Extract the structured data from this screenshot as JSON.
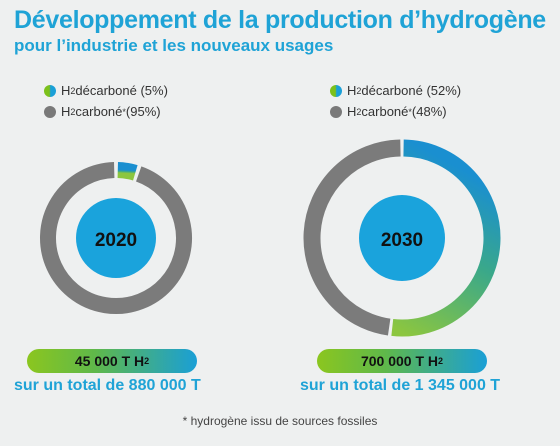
{
  "title": "Développement de la production d’hydrogène",
  "subtitle": "pour l’industrie et les nouveaux usages",
  "h2_prefix": "H",
  "h2_sub": "2",
  "colors": {
    "decarbone_start": "#8cc63f",
    "decarbone_end": "#1a8fd0",
    "carbone": "#7b7b7b",
    "center": "#1aa3dc",
    "title": "#1fa3d6"
  },
  "chart_data": [
    {
      "type": "pie",
      "center_label": "2020",
      "legend": [
        {
          "label": " décarboné (5%)",
          "mark": "",
          "color": "gradient"
        },
        {
          "label": " carboné",
          "mark": "*",
          "suffix": " (95%)",
          "color": "#7b7b7b"
        }
      ],
      "slices": [
        {
          "name": "H2 décarboné",
          "value": 5
        },
        {
          "name": "H2 carboné",
          "value": 95
        }
      ],
      "amount": "45 000 T H",
      "amount_sub": "2",
      "total": "sur un total de 880 000 T"
    },
    {
      "type": "pie",
      "center_label": "2030",
      "legend": [
        {
          "label": " décarboné (52%)",
          "mark": "",
          "color": "gradient"
        },
        {
          "label": " carboné",
          "mark": "*",
          "suffix": " (48%)",
          "color": "#7b7b7b"
        }
      ],
      "slices": [
        {
          "name": "H2 décarboné",
          "value": 52
        },
        {
          "name": "H2 carboné",
          "value": 48
        }
      ],
      "amount": "700 000 T H",
      "amount_sub": "2",
      "total": "sur un total de 1 345 000 T"
    }
  ],
  "footnote": "* hydrogène issu de sources fossiles"
}
